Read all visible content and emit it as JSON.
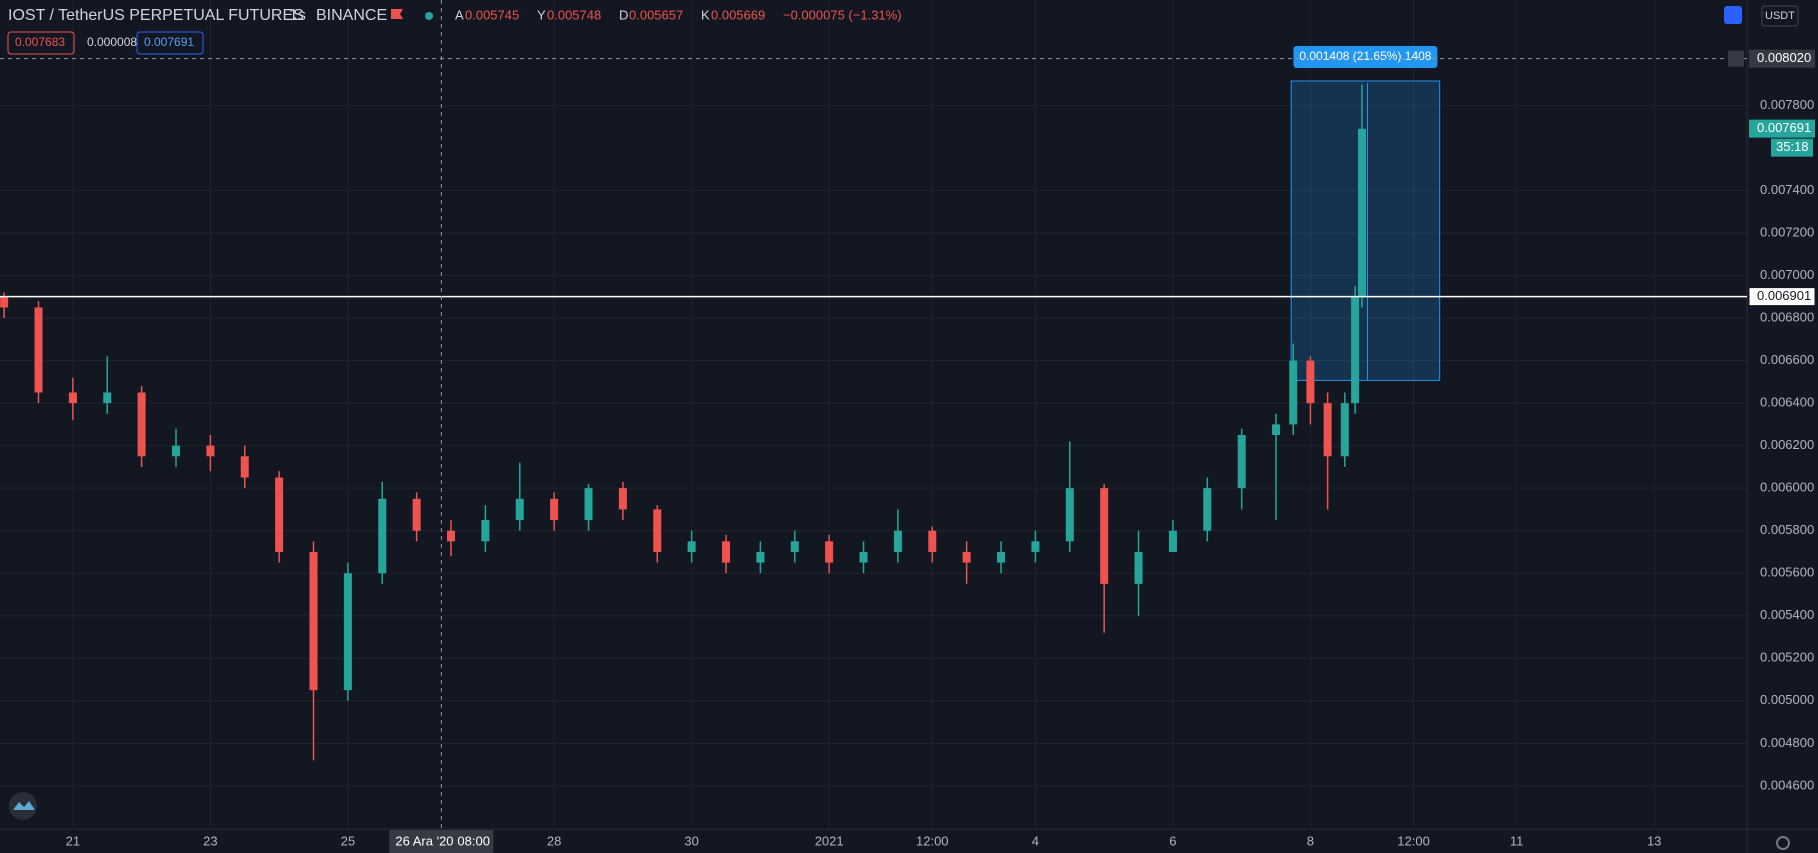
{
  "chart_data": {
    "type": "candlestick",
    "header": {
      "symbol": "IOST / TetherUS PERPETUAL FUTURES",
      "interval": "1s",
      "exchange": "BINANCE",
      "ohlc": [
        {
          "label": "A",
          "value": 0.005745
        },
        {
          "label": "Y",
          "value": 0.005748
        },
        {
          "label": "D",
          "value": 0.005657
        },
        {
          "label": "K",
          "value": 0.005669
        }
      ],
      "change": "−0.000075 (−1.31%)",
      "boxes": [
        "0.007683",
        "0.000008",
        "0.007691"
      ],
      "currency": "USDT"
    },
    "x": [
      -1,
      -0.5,
      0,
      0.5,
      1,
      1.5,
      2,
      2.5,
      3,
      3.5,
      4,
      4.5,
      5,
      5.5,
      6,
      6.5,
      7,
      7.5,
      8,
      8.5,
      9,
      9.5,
      10,
      10.5,
      11,
      11.5,
      12,
      12.5,
      13,
      13.5,
      14,
      14.5,
      15,
      15.5,
      16,
      16.5,
      17,
      17.5,
      17.75,
      18,
      18.25,
      18.5,
      18.65,
      18.75
    ],
    "open": [
      0.0069,
      0.00685,
      0.00645,
      0.0064,
      0.00645,
      0.00615,
      0.0062,
      0.00615,
      0.00605,
      0.0057,
      0.00505,
      0.0056,
      0.00595,
      0.0058,
      0.00575,
      0.00585,
      0.00595,
      0.00585,
      0.006,
      0.0059,
      0.0057,
      0.00575,
      0.00565,
      0.0057,
      0.00575,
      0.00565,
      0.0057,
      0.0058,
      0.0057,
      0.00565,
      0.0057,
      0.00575,
      0.006,
      0.00555,
      0.0057,
      0.0058,
      0.006,
      0.00625,
      0.0063,
      0.0066,
      0.0064,
      0.00615,
      0.0064,
      0.0069
    ],
    "high": [
      0.00692,
      0.00688,
      0.00652,
      0.00662,
      0.00648,
      0.00628,
      0.00625,
      0.0062,
      0.00608,
      0.00575,
      0.00565,
      0.00603,
      0.00598,
      0.00585,
      0.00592,
      0.00612,
      0.00598,
      0.00602,
      0.00603,
      0.00592,
      0.0058,
      0.00578,
      0.00575,
      0.0058,
      0.00578,
      0.00575,
      0.0059,
      0.00582,
      0.00575,
      0.00575,
      0.0058,
      0.00622,
      0.00602,
      0.0058,
      0.00585,
      0.00605,
      0.00628,
      0.00635,
      0.00668,
      0.00662,
      0.00645,
      0.00645,
      0.00695,
      0.0079
    ],
    "low": [
      0.0068,
      0.0064,
      0.00632,
      0.00635,
      0.0061,
      0.0061,
      0.00608,
      0.006,
      0.00565,
      0.00472,
      0.005,
      0.00555,
      0.00575,
      0.00568,
      0.0057,
      0.0058,
      0.0058,
      0.0058,
      0.00585,
      0.00565,
      0.00565,
      0.0056,
      0.0056,
      0.00565,
      0.0056,
      0.0056,
      0.00565,
      0.00565,
      0.00555,
      0.0056,
      0.00565,
      0.0057,
      0.00532,
      0.0054,
      0.0057,
      0.00575,
      0.0059,
      0.00585,
      0.00625,
      0.0063,
      0.0059,
      0.0061,
      0.00635,
      0.00685
    ],
    "close": [
      0.00685,
      0.00645,
      0.0064,
      0.00645,
      0.00615,
      0.0062,
      0.00615,
      0.00605,
      0.0057,
      0.00505,
      0.0056,
      0.00595,
      0.0058,
      0.00575,
      0.00585,
      0.00595,
      0.00585,
      0.006,
      0.0059,
      0.0057,
      0.00575,
      0.00565,
      0.0057,
      0.00575,
      0.00565,
      0.0057,
      0.0058,
      0.0057,
      0.00565,
      0.0057,
      0.00575,
      0.006,
      0.00555,
      0.0057,
      0.0058,
      0.006,
      0.00625,
      0.0063,
      0.0066,
      0.0064,
      0.00615,
      0.0064,
      0.0069,
      0.00769
    ],
    "up_color": "#26a69a",
    "down_color": "#ef5350",
    "xlim": [
      -1.06,
      24.35
    ],
    "xticks": [
      {
        "value": 0,
        "label": "21"
      },
      {
        "value": 2,
        "label": "23"
      },
      {
        "value": 4,
        "label": "25"
      },
      {
        "value": 7,
        "label": "28"
      },
      {
        "value": 9,
        "label": "30"
      },
      {
        "value": 11,
        "label": "2021"
      },
      {
        "value": 12.5,
        "label": "12:00"
      },
      {
        "value": 14,
        "label": "4"
      },
      {
        "value": 16,
        "label": "6"
      },
      {
        "value": 18,
        "label": "8"
      },
      {
        "value": 19.5,
        "label": "12:00"
      },
      {
        "value": 21,
        "label": "11"
      },
      {
        "value": 23,
        "label": "13"
      }
    ],
    "ylim": [
      0.004397,
      0.008296
    ],
    "yticks": [
      {
        "value": 0.0046,
        "label": "0.004600"
      },
      {
        "value": 0.0048,
        "label": "0.004800"
      },
      {
        "value": 0.005,
        "label": "0.005000"
      },
      {
        "value": 0.0052,
        "label": "0.005200"
      },
      {
        "value": 0.0054,
        "label": "0.005400"
      },
      {
        "value": 0.0056,
        "label": "0.005600"
      },
      {
        "value": 0.0058,
        "label": "0.005800"
      },
      {
        "value": 0.006,
        "label": "0.006000"
      },
      {
        "value": 0.0062,
        "label": "0.006200"
      },
      {
        "value": 0.0064,
        "label": "0.006400"
      },
      {
        "value": 0.0066,
        "label": "0.006600"
      },
      {
        "value": 0.0068,
        "label": "0.006800"
      },
      {
        "value": 0.007,
        "label": "0.007000"
      },
      {
        "value": 0.0072,
        "label": "0.007200"
      },
      {
        "value": 0.0074,
        "label": "0.007400"
      },
      {
        "value": 0.0078,
        "label": "0.007800"
      }
    ],
    "grid": true,
    "hline": {
      "value": 0.006901,
      "label": "0.006901"
    },
    "last_price": {
      "value": 0.007691,
      "label": "0.007691",
      "countdown": "35:18"
    },
    "crosshair": {
      "x": 5.36,
      "y": 0.00802,
      "price_label": "0.008020",
      "date_label": "26 Ara '20",
      "time_label": "08:00"
    },
    "measure": {
      "label": "0.001408 (21.65%) 1408",
      "top": 0.007915,
      "bottom": 0.006507,
      "x": [
        17.72,
        19.88
      ]
    }
  }
}
